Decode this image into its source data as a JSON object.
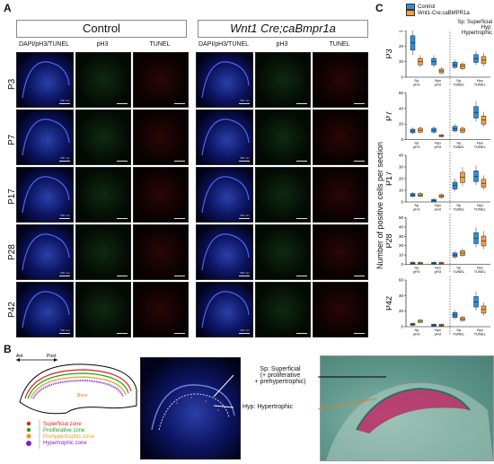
{
  "panel_labels": {
    "A": "A",
    "B": "B",
    "C": "C"
  },
  "groups": {
    "control": "Control",
    "mutant": "Wnt1 Cre;caBmpr1a"
  },
  "columns": [
    "DAPI/pH3/TUNEL",
    "pH3",
    "TUNEL"
  ],
  "rows": [
    "P3",
    "P7",
    "P17",
    "P28",
    "P42"
  ],
  "scale_label": "500 mm",
  "legend": {
    "control": "Control",
    "mutant": "Wnt1-Cre;caBMPR1a"
  },
  "chart_note": {
    "sp": "Sp: Superficial",
    "hyp": "Hyp: Hypertrophic"
  },
  "y_axis_label": "Number of positive cells per section",
  "colors": {
    "control": "#2f8fd8",
    "mutant": "#f0a040"
  },
  "schematic": {
    "ant": "Ant",
    "post": "Post",
    "bone": "Bone",
    "zones": [
      {
        "label": "Superficial zone",
        "color": "#e02020"
      },
      {
        "label": "Proliferative zone",
        "color": "#20a020"
      },
      {
        "label": "Prehypertrophic zone",
        "color": "#e0a020"
      },
      {
        "label": "Hypertrophic zone",
        "color": "#8020c0"
      }
    ],
    "sp_annotation": "Sp: Superficial",
    "sp_annotation_2": "(+ proliferative",
    "sp_annotation_3": "+ prehypertrophic)",
    "hyp_annotation": "Hyp: Hypertrophic"
  },
  "chart_data": [
    {
      "type": "box",
      "title": "P3",
      "categories": [
        "Sp pH3",
        "Hyo pH3",
        "Sp TUNEL",
        "Hyo TUNEL"
      ],
      "ylim": [
        0,
        30
      ],
      "yticks": [
        0,
        10,
        20,
        30
      ],
      "series": [
        {
          "name": "Control",
          "medians": [
            22,
            10,
            8,
            12
          ]
        },
        {
          "name": "Wnt1-Cre;caBMPR1a",
          "medians": [
            10,
            4,
            7,
            11
          ]
        }
      ]
    },
    {
      "type": "box",
      "title": "P7",
      "categories": [
        "Sp pH3",
        "Hyo pH3",
        "Sp TUNEL",
        "Hyo TUNEL"
      ],
      "ylim": [
        0,
        60
      ],
      "yticks": [
        0,
        20,
        40,
        60
      ],
      "series": [
        {
          "name": "Control",
          "medians": [
            11,
            12,
            14,
            35
          ]
        },
        {
          "name": "Wnt1-Cre;caBMPR1a",
          "medians": [
            12,
            5,
            12,
            25
          ]
        }
      ]
    },
    {
      "type": "box",
      "title": "P17",
      "categories": [
        "Sp pH3",
        "Hyo pH3",
        "Sp TUNEL",
        "Hyo TUNEL"
      ],
      "ylim": [
        0,
        40
      ],
      "yticks": [
        0,
        10,
        20,
        30,
        40
      ],
      "series": [
        {
          "name": "Control",
          "medians": [
            6,
            1,
            14,
            22
          ]
        },
        {
          "name": "Wnt1-Cre;caBMPR1a",
          "medians": [
            6,
            5,
            21,
            16
          ]
        }
      ]
    },
    {
      "type": "box",
      "title": "P28",
      "categories": [
        "Sp pH3",
        "Hyo pH3",
        "Sp TUNEL",
        "Hyo TUNEL"
      ],
      "ylim": [
        0,
        50
      ],
      "yticks": [
        0,
        10,
        20,
        30,
        40,
        50
      ],
      "series": [
        {
          "name": "Control",
          "medians": [
            1,
            1,
            10,
            28
          ]
        },
        {
          "name": "Wnt1-Cre;caBMPR1a",
          "medians": [
            1,
            1,
            12,
            25
          ]
        }
      ]
    },
    {
      "type": "box",
      "title": "P42",
      "categories": [
        "Sp pH3",
        "Hyo pH3",
        "Sp TUNEL",
        "Hyo TUNEL"
      ],
      "ylim": [
        0,
        60
      ],
      "yticks": [
        0,
        20,
        40,
        60
      ],
      "series": [
        {
          "name": "Control",
          "medians": [
            3,
            2,
            15,
            32
          ]
        },
        {
          "name": "Wnt1-Cre;caBMPR1a",
          "medians": [
            7,
            2,
            10,
            22
          ]
        }
      ]
    }
  ]
}
